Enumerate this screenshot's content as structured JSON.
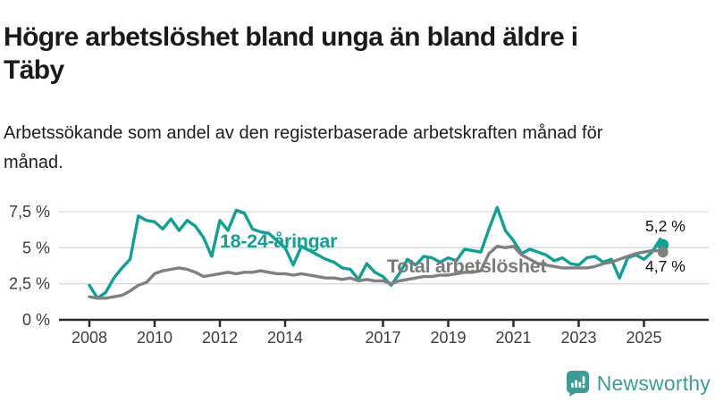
{
  "header": {
    "title": "Högre arbetslöshet bland unga än bland äldre i Täby",
    "subtitle": "Arbetssökande som andel av den registerbaserade arbetskraften månad för månad."
  },
  "chart_data": {
    "type": "line",
    "title": "Högre arbetslöshet bland unga än bland äldre i Täby",
    "subtitle": "Arbetssökande som andel av den registerbaserade arbetskraften månad för månad.",
    "xlabel": "",
    "ylabel": "",
    "xlim": [
      2007.1,
      2026.0
    ],
    "ylim": [
      0,
      8.5
    ],
    "grid": "horizontal",
    "legend_position": "inline-annotations",
    "x": [
      2008.0,
      2008.25,
      2008.5,
      2008.75,
      2009.0,
      2009.25,
      2009.5,
      2009.75,
      2010.0,
      2010.25,
      2010.5,
      2010.75,
      2011.0,
      2011.25,
      2011.5,
      2011.75,
      2012.0,
      2012.25,
      2012.5,
      2012.75,
      2013.0,
      2013.25,
      2013.5,
      2013.75,
      2014.0,
      2014.25,
      2014.5,
      2014.75,
      2015.0,
      2015.25,
      2015.5,
      2015.75,
      2016.0,
      2016.25,
      2016.5,
      2016.75,
      2017.0,
      2017.25,
      2017.5,
      2017.75,
      2018.0,
      2018.25,
      2018.5,
      2018.75,
      2019.0,
      2019.25,
      2019.5,
      2019.75,
      2020.0,
      2020.25,
      2020.5,
      2020.75,
      2021.0,
      2021.25,
      2021.5,
      2021.75,
      2022.0,
      2022.25,
      2022.5,
      2022.75,
      2023.0,
      2023.25,
      2023.5,
      2023.75,
      2024.0,
      2024.25,
      2024.5,
      2024.75,
      2025.0,
      2025.25,
      2025.5,
      2025.58
    ],
    "series": [
      {
        "id": "young",
        "name": "18-24-åringar",
        "color": "#12a094",
        "end_label": "5,2 %",
        "end_value": 5.2,
        "dot_r": 6.5,
        "values": [
          2.4,
          1.5,
          1.9,
          2.9,
          3.6,
          4.2,
          7.2,
          6.9,
          6.8,
          6.3,
          7.0,
          6.2,
          6.9,
          6.5,
          5.7,
          4.4,
          6.9,
          6.2,
          7.6,
          7.4,
          6.3,
          6.1,
          6.0,
          5.5,
          5.0,
          3.8,
          5.1,
          4.8,
          4.5,
          4.2,
          4.0,
          3.6,
          3.5,
          2.8,
          3.9,
          3.3,
          3.0,
          2.4,
          3.2,
          4.2,
          3.8,
          4.4,
          4.3,
          4.0,
          4.3,
          4.1,
          4.9,
          4.8,
          4.7,
          6.3,
          7.8,
          6.2,
          5.5,
          4.6,
          4.9,
          4.7,
          4.5,
          4.1,
          4.3,
          3.9,
          3.8,
          4.3,
          4.4,
          4.0,
          4.2,
          2.9,
          4.3,
          4.5,
          4.2,
          4.7,
          5.6,
          5.2
        ]
      },
      {
        "id": "total",
        "name": "Total arbetslöshet",
        "color": "#808080",
        "label_color": "#7a7a7a",
        "end_label": "4,7 %",
        "end_value": 4.7,
        "dot_r": 6,
        "values": [
          1.6,
          1.5,
          1.5,
          1.6,
          1.7,
          2.0,
          2.4,
          2.6,
          3.2,
          3.4,
          3.5,
          3.6,
          3.5,
          3.3,
          3.0,
          3.1,
          3.2,
          3.3,
          3.2,
          3.3,
          3.3,
          3.4,
          3.3,
          3.2,
          3.2,
          3.1,
          3.2,
          3.1,
          3.0,
          2.9,
          2.9,
          2.8,
          2.9,
          2.7,
          2.8,
          2.7,
          2.7,
          2.5,
          2.7,
          2.8,
          2.9,
          3.0,
          3.0,
          3.1,
          3.1,
          3.2,
          3.3,
          3.3,
          3.4,
          4.6,
          5.1,
          5.0,
          5.1,
          4.5,
          4.2,
          3.9,
          3.8,
          3.7,
          3.6,
          3.6,
          3.6,
          3.6,
          3.7,
          3.9,
          4.0,
          4.2,
          4.4,
          4.6,
          4.7,
          4.8,
          4.8,
          4.7
        ]
      }
    ],
    "xticks": [
      2008,
      2010,
      2012,
      2014,
      2017,
      2019,
      2021,
      2023,
      2025
    ],
    "yticks": [
      {
        "value": 0,
        "label": "0 %"
      },
      {
        "value": 2.5,
        "label": "2,5 %"
      },
      {
        "value": 5,
        "label": "5 %"
      },
      {
        "value": 7.5,
        "label": "7,5 %"
      }
    ],
    "colors": {
      "grid": "#d9d9d9",
      "axis": "#2b2b2b",
      "axis_text": "#3d3d3d",
      "annotation_text": "#111111"
    }
  },
  "footer": {
    "brand": "Newsworthy",
    "brand_color": "#3f9c95"
  }
}
